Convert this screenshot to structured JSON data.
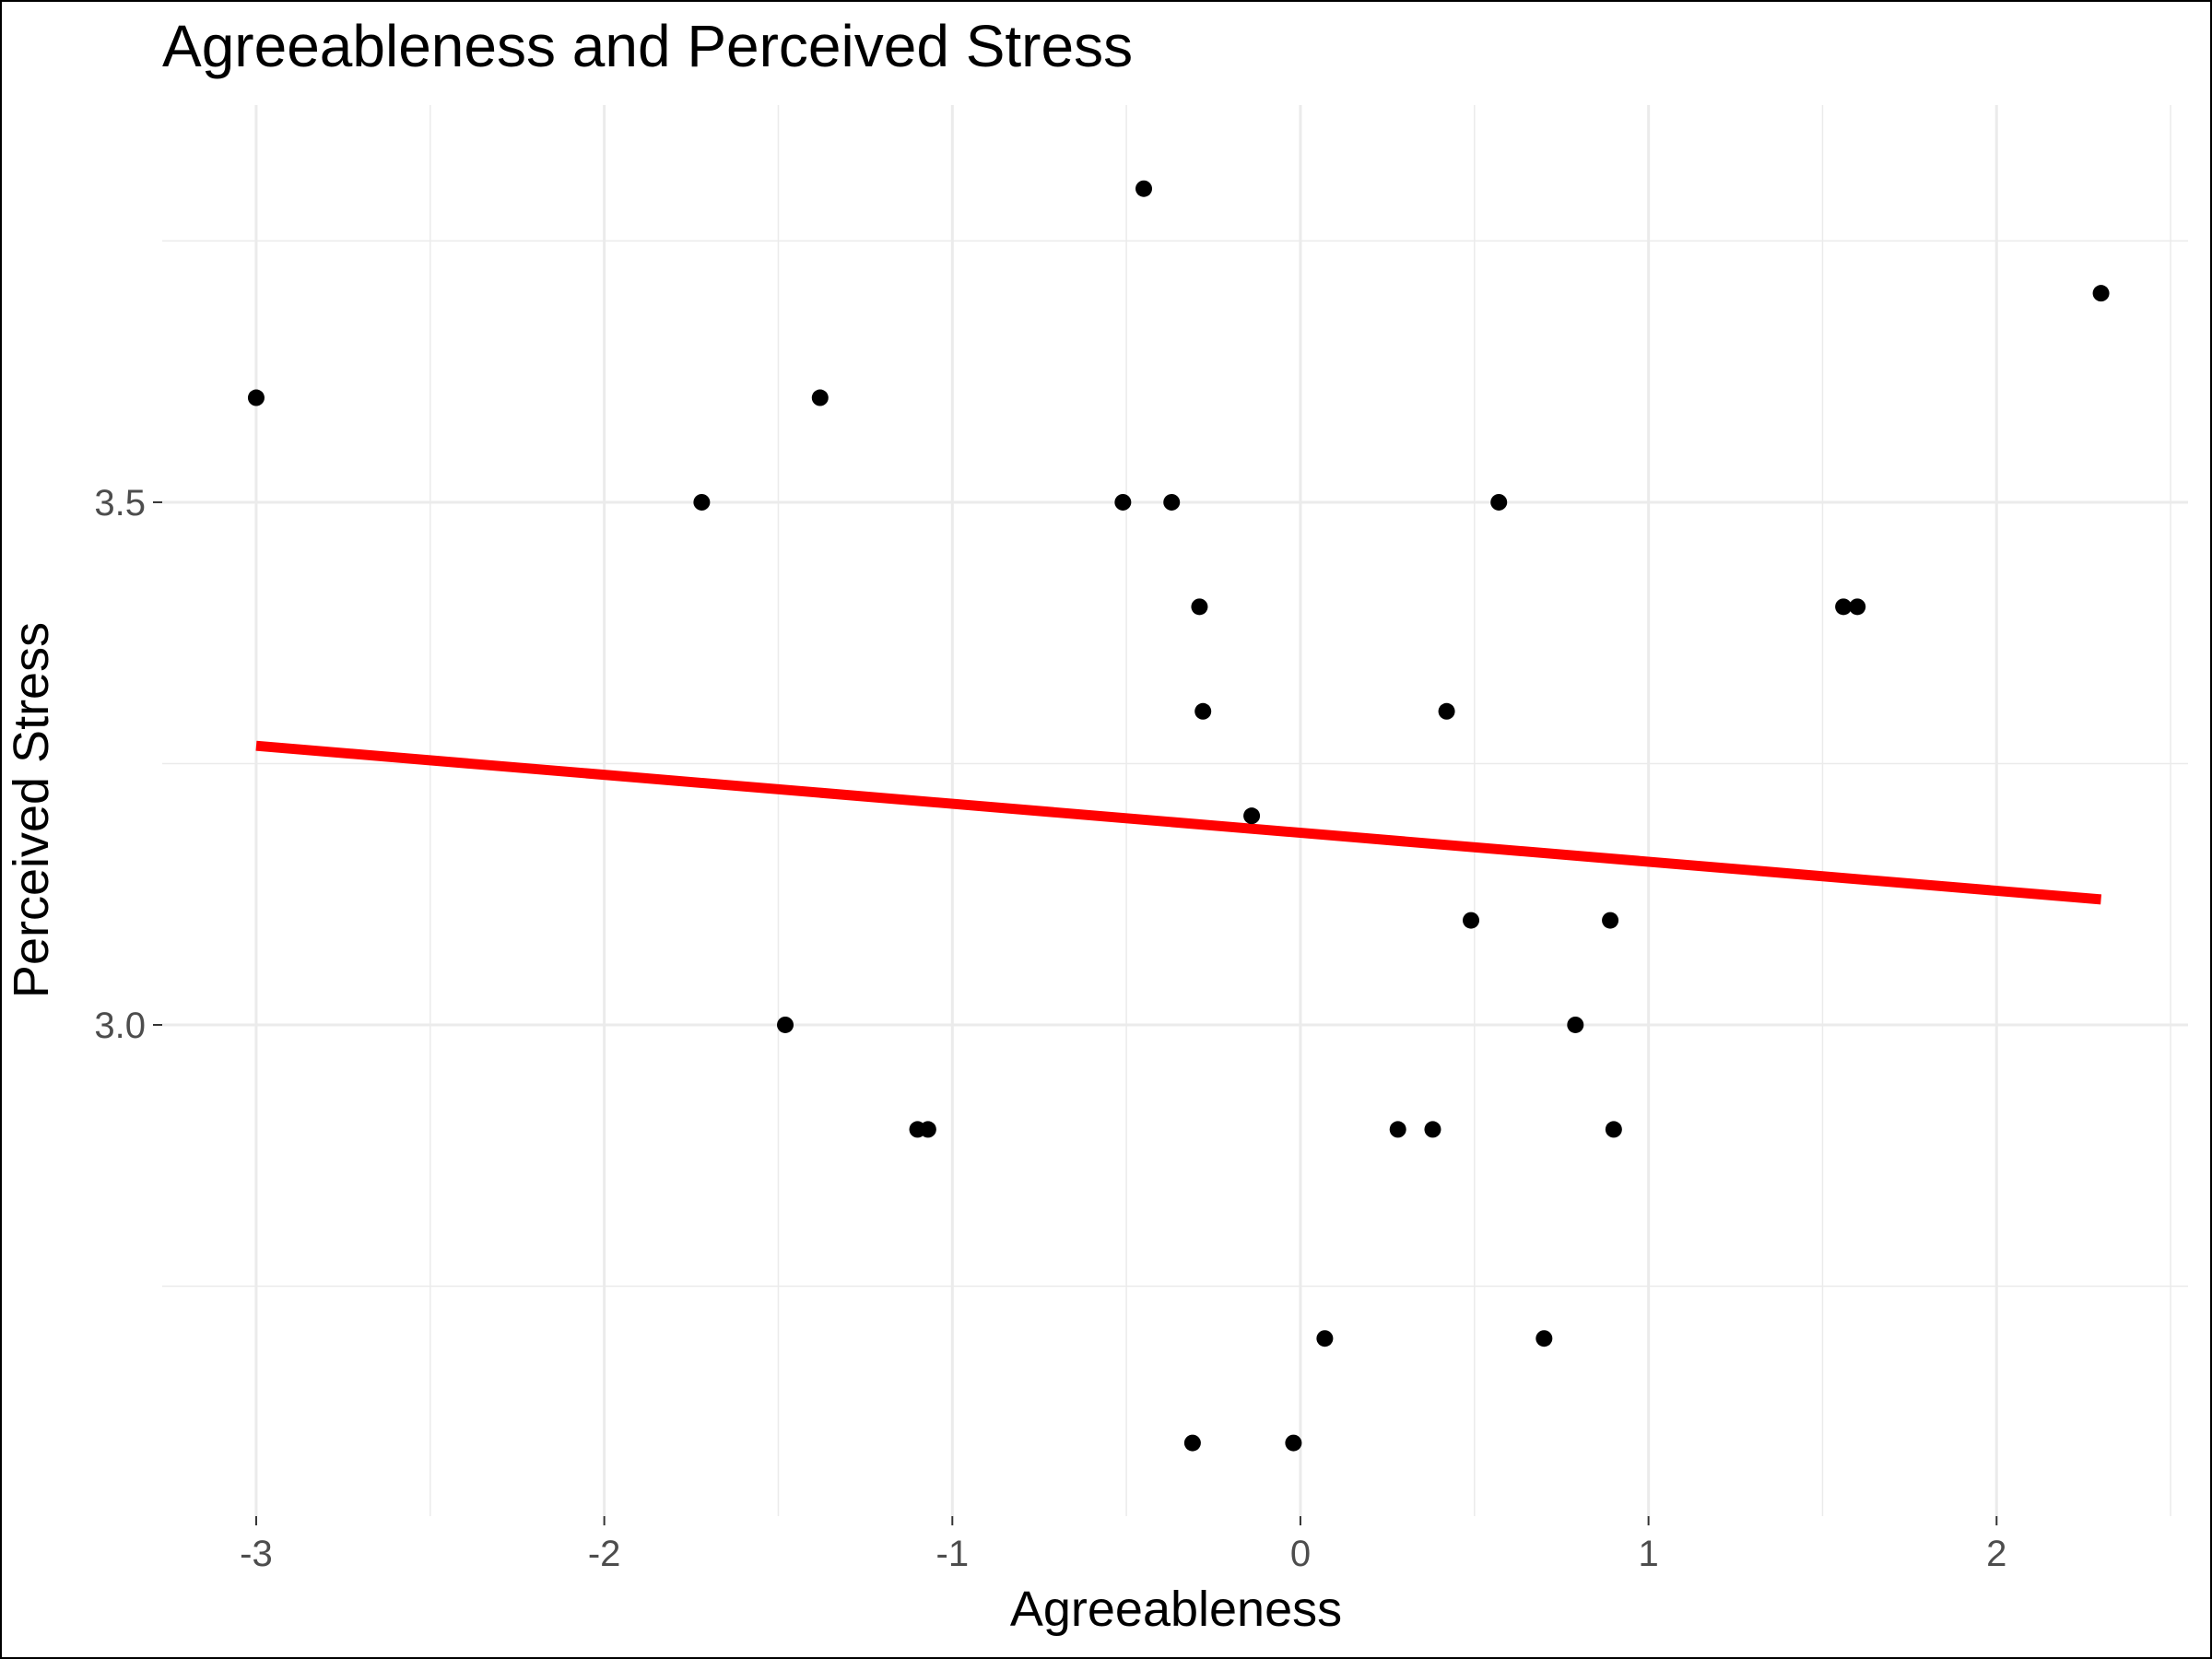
{
  "chart_data": {
    "type": "scatter",
    "title": "Agreeableness and Perceived Stress",
    "xlabel": "Agreeableness",
    "ylabel": "Perceived Stress",
    "xlim": [
      -3.27,
      2.55
    ],
    "ylim": [
      2.53,
      3.88
    ],
    "x_major_ticks": [
      -3,
      -2,
      -1,
      0,
      1,
      2
    ],
    "x_tick_labels": [
      "-3",
      "-2",
      "-1",
      "0",
      "1",
      "2"
    ],
    "x_minor_ticks": [
      -2.5,
      -1.5,
      -0.5,
      0.5,
      1.5,
      2.5
    ],
    "y_major_ticks": [
      3.0,
      3.5
    ],
    "y_tick_labels": [
      "3.0",
      "3.5"
    ],
    "y_minor_ticks": [
      2.75,
      3.25,
      3.75
    ],
    "grid": true,
    "point_color": "#000000",
    "points": [
      {
        "x": -3.0,
        "y": 3.6
      },
      {
        "x": -1.72,
        "y": 3.5
      },
      {
        "x": -1.38,
        "y": 3.6
      },
      {
        "x": -1.48,
        "y": 3.0
      },
      {
        "x": -1.1,
        "y": 2.9
      },
      {
        "x": -1.07,
        "y": 2.9
      },
      {
        "x": -0.45,
        "y": 3.8
      },
      {
        "x": -0.51,
        "y": 3.5
      },
      {
        "x": -0.37,
        "y": 3.5
      },
      {
        "x": -0.29,
        "y": 3.4
      },
      {
        "x": -0.28,
        "y": 3.3
      },
      {
        "x": -0.14,
        "y": 3.2
      },
      {
        "x": -0.31,
        "y": 2.6
      },
      {
        "x": -0.02,
        "y": 2.6
      },
      {
        "x": 0.07,
        "y": 2.7
      },
      {
        "x": 0.28,
        "y": 2.9
      },
      {
        "x": 0.38,
        "y": 2.9
      },
      {
        "x": 0.42,
        "y": 3.3
      },
      {
        "x": 0.49,
        "y": 3.1
      },
      {
        "x": 0.57,
        "y": 3.5
      },
      {
        "x": 0.7,
        "y": 2.7
      },
      {
        "x": 0.79,
        "y": 3.0
      },
      {
        "x": 0.89,
        "y": 3.1
      },
      {
        "x": 0.9,
        "y": 2.9
      },
      {
        "x": 1.56,
        "y": 3.4
      },
      {
        "x": 1.6,
        "y": 3.4
      },
      {
        "x": 2.3,
        "y": 3.7
      }
    ],
    "fit_line": {
      "color": "#ff0000",
      "x": [
        -3.0,
        2.3
      ],
      "y": [
        3.267,
        3.12
      ]
    }
  }
}
